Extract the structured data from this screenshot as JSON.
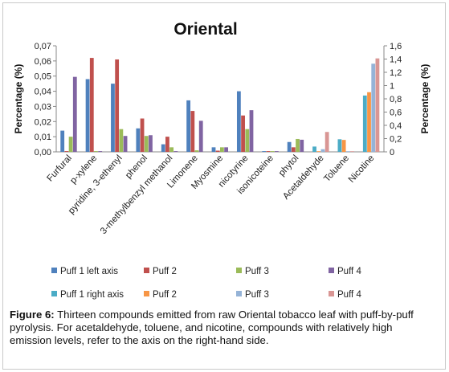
{
  "chart_data": {
    "type": "bar",
    "title": "Oriental",
    "ylabel_left": "Percentage (%)",
    "ylabel_right": "Percentage (%)",
    "ylim_left": [
      0,
      0.07
    ],
    "ylim_right": [
      0,
      1.6
    ],
    "yticks_left": [
      "0,00",
      "0,01",
      "0,02",
      "0,03",
      "0,04",
      "0,05",
      "0,06",
      "0,07"
    ],
    "yticks_right": [
      "0",
      "0,2",
      "0,4",
      "0,6",
      "0,8",
      "1",
      "1,2",
      "1,4",
      "1,6"
    ],
    "grid": false,
    "legend_position": "bottom",
    "categories": [
      "Furfural",
      "p-xylene",
      "pyridine, 3-ethenyl",
      "phenol",
      "3-methylbenzyl methanol",
      "Limonene",
      "Myosmine",
      "nicotyrine",
      "isonicoteine",
      "phytol",
      "Acetaldehyde",
      "Toluene",
      "Nicotine"
    ],
    "series": [
      {
        "name": "Puff 1 left axis",
        "axis": "left",
        "color": "#4F81BD",
        "values": [
          0.014,
          0.048,
          0.045,
          0.0155,
          0.005,
          0.034,
          0.003,
          0.04,
          0.0005,
          0.0065,
          null,
          null,
          null
        ]
      },
      {
        "name": "Puff 2",
        "axis": "left",
        "color": "#C0504D",
        "values": [
          0.0005,
          0.062,
          0.061,
          0.022,
          0.01,
          0.027,
          0.0008,
          0.024,
          0.0005,
          0.003,
          null,
          null,
          null
        ]
      },
      {
        "name": "Puff 3",
        "axis": "left",
        "color": "#9BBB59",
        "values": [
          0.01,
          0.0005,
          0.015,
          0.0105,
          0.003,
          0.001,
          0.003,
          0.015,
          0.0005,
          0.0085,
          null,
          null,
          null
        ]
      },
      {
        "name": "Puff 4",
        "axis": "left",
        "color": "#8064A2",
        "values": [
          0.0495,
          0.0005,
          0.0105,
          0.011,
          0.0005,
          0.0205,
          0.003,
          0.0275,
          0.0005,
          0.008,
          null,
          null,
          null
        ]
      },
      {
        "name": "Puff 1 right axis",
        "axis": "right",
        "color": "#4BACC6",
        "values": [
          null,
          null,
          null,
          null,
          null,
          null,
          null,
          null,
          null,
          null,
          0.08,
          0.19,
          0.85
        ]
      },
      {
        "name": "Puff 2",
        "axis": "right",
        "color": "#F79646",
        "values": [
          null,
          null,
          null,
          null,
          null,
          null,
          null,
          null,
          null,
          null,
          0.01,
          0.18,
          0.9
        ]
      },
      {
        "name": "Puff 3",
        "axis": "right",
        "color": "#95B3D7",
        "values": [
          null,
          null,
          null,
          null,
          null,
          null,
          null,
          null,
          null,
          null,
          0.04,
          0.005,
          1.33
        ]
      },
      {
        "name": "Puff 4",
        "axis": "right",
        "color": "#D99694",
        "values": [
          null,
          null,
          null,
          null,
          null,
          null,
          null,
          null,
          null,
          null,
          0.3,
          0.005,
          1.41
        ]
      }
    ]
  },
  "caption": {
    "label": "Figure 6:",
    "text": "Thirteen compounds emitted from raw Oriental tobacco leaf with puff-by-puff pyrolysis. For acetaldehyde, toluene, and nicotine, compounds with relatively high emission levels, refer to the axis on the right-hand side."
  }
}
